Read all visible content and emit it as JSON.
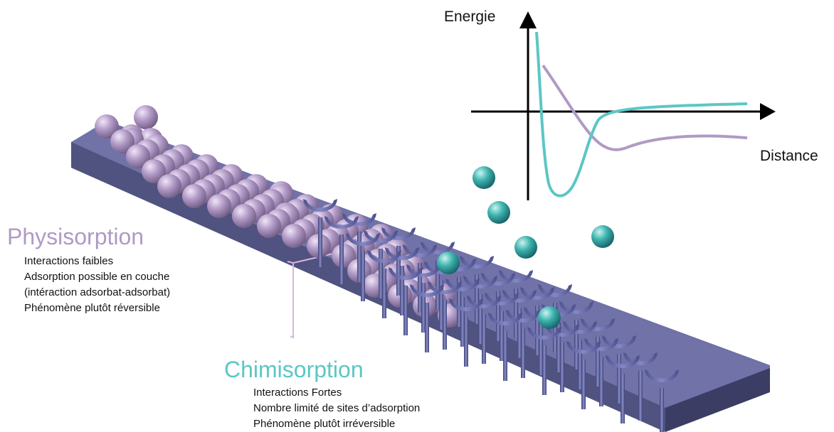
{
  "colors": {
    "physisorption": "#b09ac4",
    "chimisorption": "#5cc6c6",
    "substrate_top": "#6f71a6",
    "substrate_front": "#4f517f",
    "substrate_side": "#393b61",
    "cup": "#6e72ad",
    "axis": "#000000"
  },
  "energy_diagram": {
    "y_axis_label": "Energie",
    "x_axis_label": "Distance",
    "curves": [
      {
        "name": "chimisorption",
        "color": "#5cc6c6",
        "shape": "deep-narrow-well"
      },
      {
        "name": "physisorption",
        "color": "#b09ac4",
        "shape": "shallow-wide-well"
      }
    ]
  },
  "physisorption": {
    "title": "Physisorption",
    "lines": [
      "Interactions faibles",
      "Adsorption possible en couche",
      "(intéraction adsorbat-adsorbat)",
      "Phénomène plutôt réversible"
    ]
  },
  "chimisorption": {
    "title": "Chimisorption",
    "lines": [
      "Interactions Fortes",
      "Nombre limité de sites d’adsorption",
      "Phénomène plutôt irréversible"
    ]
  }
}
